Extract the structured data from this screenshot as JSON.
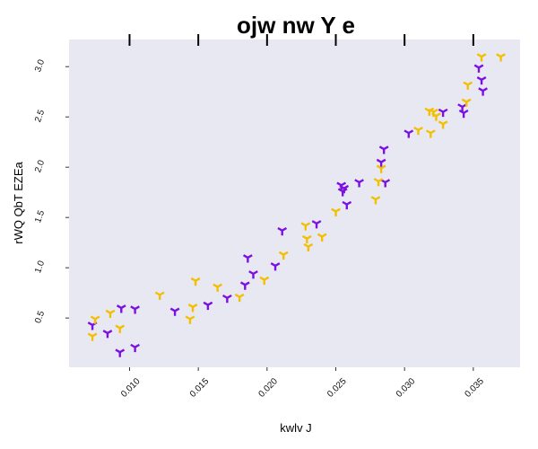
{
  "chart_data": {
    "type": "scatter",
    "title": "ojw   nw Y e",
    "xlabel": "kwlv J",
    "ylabel": "rWQ QbT EZEa",
    "xlim": [
      0.0056,
      0.0384
    ],
    "ylim": [
      0.01,
      3.27
    ],
    "x_ticks": [
      "0.010",
      "0.015",
      "0.020",
      "0.025",
      "0.030",
      "0.035"
    ],
    "y_ticks": [
      "0.5",
      "1.0",
      "1.5",
      "2.0",
      "2.5",
      "3.0"
    ],
    "grid": false,
    "background": "#e8e8f2",
    "marker": "tri_down",
    "series": [
      {
        "color": "#7b10e0",
        "points": [
          [
            0.0073,
            0.43
          ],
          [
            0.0084,
            0.35
          ],
          [
            0.0094,
            0.6
          ],
          [
            0.0093,
            0.16
          ],
          [
            0.0104,
            0.59
          ],
          [
            0.0104,
            0.21
          ],
          [
            0.0133,
            0.57
          ],
          [
            0.0157,
            0.63
          ],
          [
            0.0171,
            0.7
          ],
          [
            0.0184,
            0.83
          ],
          [
            0.0186,
            1.1
          ],
          [
            0.019,
            0.94
          ],
          [
            0.0206,
            1.02
          ],
          [
            0.0211,
            1.37
          ],
          [
            0.0236,
            1.44
          ],
          [
            0.0254,
            1.82
          ],
          [
            0.0256,
            1.79
          ],
          [
            0.0255,
            1.76
          ],
          [
            0.0258,
            1.63
          ],
          [
            0.0267,
            1.85
          ],
          [
            0.0283,
            2.05
          ],
          [
            0.0285,
            2.18
          ],
          [
            0.0286,
            1.85
          ],
          [
            0.0303,
            2.34
          ],
          [
            0.0328,
            2.55
          ],
          [
            0.0342,
            2.6
          ],
          [
            0.0343,
            2.54
          ],
          [
            0.0354,
            2.99
          ],
          [
            0.0356,
            2.87
          ],
          [
            0.0357,
            2.76
          ]
        ]
      },
      {
        "color": "#f2c000",
        "points": [
          [
            0.0073,
            0.32
          ],
          [
            0.0075,
            0.49
          ],
          [
            0.0086,
            0.55
          ],
          [
            0.0093,
            0.4
          ],
          [
            0.0122,
            0.73
          ],
          [
            0.0144,
            0.49
          ],
          [
            0.0146,
            0.61
          ],
          [
            0.0148,
            0.87
          ],
          [
            0.0164,
            0.81
          ],
          [
            0.018,
            0.71
          ],
          [
            0.0198,
            0.88
          ],
          [
            0.0212,
            1.13
          ],
          [
            0.0228,
            1.42
          ],
          [
            0.0229,
            1.29
          ],
          [
            0.023,
            1.21
          ],
          [
            0.024,
            1.31
          ],
          [
            0.025,
            1.56
          ],
          [
            0.0279,
            1.68
          ],
          [
            0.0281,
            1.86
          ],
          [
            0.0283,
            1.99
          ],
          [
            0.031,
            2.37
          ],
          [
            0.0318,
            2.56
          ],
          [
            0.0319,
            2.34
          ],
          [
            0.0321,
            2.55
          ],
          [
            0.0323,
            2.51
          ],
          [
            0.0328,
            2.43
          ],
          [
            0.0345,
            2.65
          ],
          [
            0.0346,
            2.82
          ],
          [
            0.0356,
            3.1
          ],
          [
            0.037,
            3.1
          ]
        ]
      }
    ]
  }
}
